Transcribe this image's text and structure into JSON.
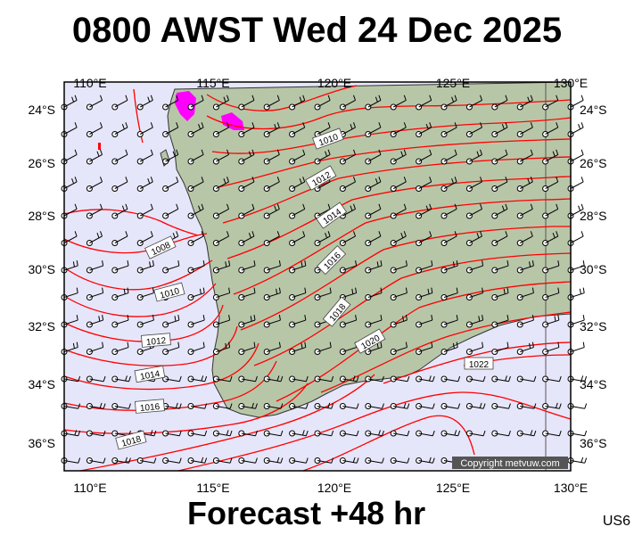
{
  "title": "0800 AWST Wed 24 Dec 2025",
  "footer": "Forecast +48 hr",
  "code": "US6",
  "copyright": "Copyright metvuw.com",
  "colors": {
    "sea": "#e6e6fa",
    "land": "#b8c6a8",
    "isobar": "#ff0000",
    "rain": "#ff00ff",
    "barb": "#000000"
  },
  "axes": {
    "lon_ticks": [
      "110°E",
      "115°E",
      "120°E",
      "125°E",
      "130°E"
    ],
    "lat_ticks_left": [
      "24°S",
      "26°S",
      "28°S",
      "30°S",
      "32°S",
      "34°S",
      "36°S"
    ],
    "lat_ticks_right": [
      "24°S",
      "26°S",
      "28°S",
      "30°S",
      "32°S",
      "34°S",
      "36°S"
    ]
  },
  "isobar_labels": [
    "1010",
    "1012",
    "1014",
    "1016",
    "1018",
    "1020",
    "1022",
    "1008",
    "1010",
    "1012",
    "1014",
    "1016",
    "1018"
  ]
}
